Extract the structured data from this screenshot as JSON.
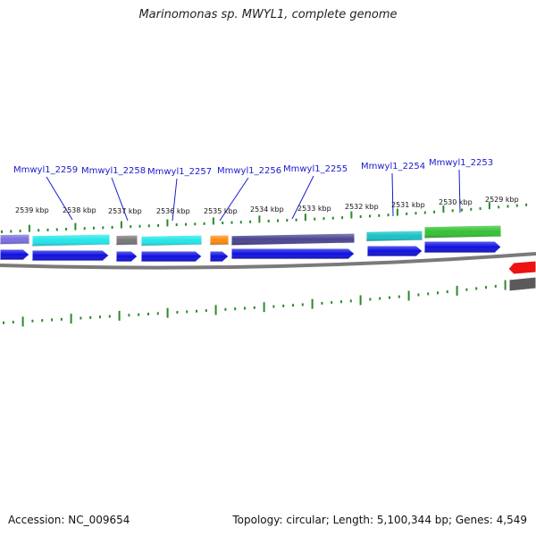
{
  "title": "Marinomonas sp. MWYL1, complete genome",
  "footer": {
    "accession": "Accession: NC_009654",
    "topology": "Topology: circular; Length: 5,100,344 bp; Genes: 4,549"
  },
  "kbp_labels": [
    {
      "text": "2539 kbp"
    },
    {
      "text": "2538 kbp"
    },
    {
      "text": "2537 kbp"
    },
    {
      "text": "2536 kbp"
    },
    {
      "text": "2535 kbp"
    },
    {
      "text": "2534 kbp"
    },
    {
      "text": "2533 kbp"
    },
    {
      "text": "2532 kbp"
    },
    {
      "text": "2531 kbp"
    },
    {
      "text": "2530 kbp"
    },
    {
      "text": "2529 kbp"
    }
  ],
  "gene_labels": [
    {
      "text": "Mmwyl1_2259"
    },
    {
      "text": "Mmwyl1_2258"
    },
    {
      "text": "Mmwyl1_2257"
    },
    {
      "text": "Mmwyl1_2256"
    },
    {
      "text": "Mmwyl1_2255"
    },
    {
      "text": "Mmwyl1_2254"
    },
    {
      "text": "Mmwyl1_2253"
    }
  ],
  "colors": {
    "tick": "#2a8a2a",
    "cds": "#1010e0",
    "label": "#1a1ad0",
    "backbone": "#7a7a7a",
    "reverse_cds": "#ee1111"
  },
  "features": [
    {
      "color": "#7a6fe0"
    },
    {
      "color": "#22e6ea"
    },
    {
      "color": "#777777"
    },
    {
      "color": "#22e6ea"
    },
    {
      "color": "#ff8a10"
    },
    {
      "color": "#4a4490"
    },
    {
      "color": "#18c2c6"
    },
    {
      "color": "#33c233"
    }
  ]
}
